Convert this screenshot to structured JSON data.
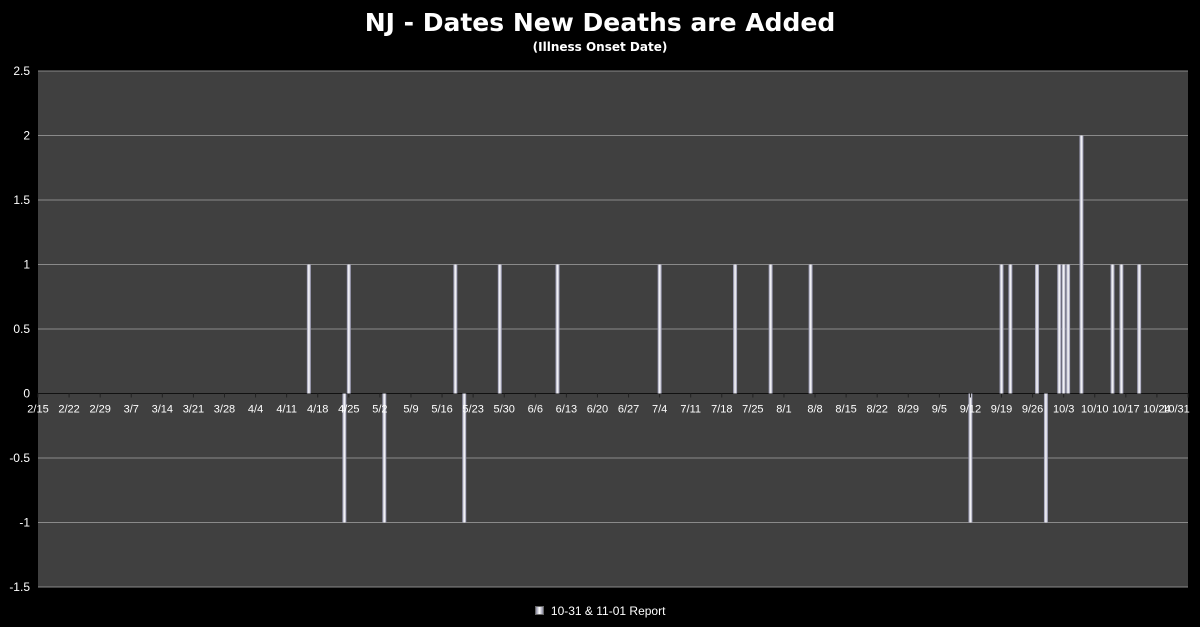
{
  "chart_data": {
    "type": "bar",
    "title": "NJ - Dates New Deaths are Added",
    "subtitle": "(Illness Onset Date)",
    "xlabel": "",
    "ylabel": "",
    "ylim": [
      -1.5,
      2.5
    ],
    "yticks": [
      "2.5",
      "2",
      "1.5",
      "1",
      "0.5",
      "0",
      "-0.5",
      "-1",
      "-1.5"
    ],
    "xrange": [
      "2020-02-15",
      "2020-10-31"
    ],
    "xtick_labels": [
      "2/15",
      "2/22",
      "2/29",
      "3/7",
      "3/14",
      "3/21",
      "3/28",
      "4/4",
      "4/11",
      "4/18",
      "4/25",
      "5/2",
      "5/9",
      "5/16",
      "5/23",
      "5/30",
      "6/6",
      "6/13",
      "6/20",
      "6/27",
      "7/4",
      "7/11",
      "7/18",
      "7/25",
      "8/1",
      "8/8",
      "8/15",
      "8/22",
      "8/29",
      "9/5",
      "9/12",
      "9/19",
      "9/26",
      "10/3",
      "10/10",
      "10/17",
      "10/24",
      "10/31"
    ],
    "grid": true,
    "legend_position": "bottom",
    "series": [
      {
        "name": "10-31 & 11-01 Report",
        "points": [
          {
            "x": "2020-04-16",
            "y": 1
          },
          {
            "x": "2020-04-24",
            "y": -1
          },
          {
            "x": "2020-04-25",
            "y": 1
          },
          {
            "x": "2020-05-03",
            "y": -1
          },
          {
            "x": "2020-05-19",
            "y": 1
          },
          {
            "x": "2020-05-21",
            "y": -1
          },
          {
            "x": "2020-05-29",
            "y": 1
          },
          {
            "x": "2020-06-11",
            "y": 1
          },
          {
            "x": "2020-07-04",
            "y": 1
          },
          {
            "x": "2020-07-21",
            "y": 1
          },
          {
            "x": "2020-07-29",
            "y": 1
          },
          {
            "x": "2020-08-07",
            "y": 1
          },
          {
            "x": "2020-09-12",
            "y": -1
          },
          {
            "x": "2020-09-19",
            "y": 1
          },
          {
            "x": "2020-09-21",
            "y": 1
          },
          {
            "x": "2020-09-27",
            "y": 1
          },
          {
            "x": "2020-09-29",
            "y": -1
          },
          {
            "x": "2020-10-02",
            "y": 1
          },
          {
            "x": "2020-10-03",
            "y": 1
          },
          {
            "x": "2020-10-04",
            "y": 1
          },
          {
            "x": "2020-10-07",
            "y": 2
          },
          {
            "x": "2020-10-14",
            "y": 1
          },
          {
            "x": "2020-10-16",
            "y": 1
          },
          {
            "x": "2020-10-20",
            "y": 1
          }
        ]
      }
    ],
    "colors": {
      "background": "#000000",
      "plot_area": "#404040",
      "gridline": "#8a8a8a",
      "bar_edge": "#8c8ca8",
      "bar_center": "#ffffff",
      "text": "#ffffff"
    }
  }
}
